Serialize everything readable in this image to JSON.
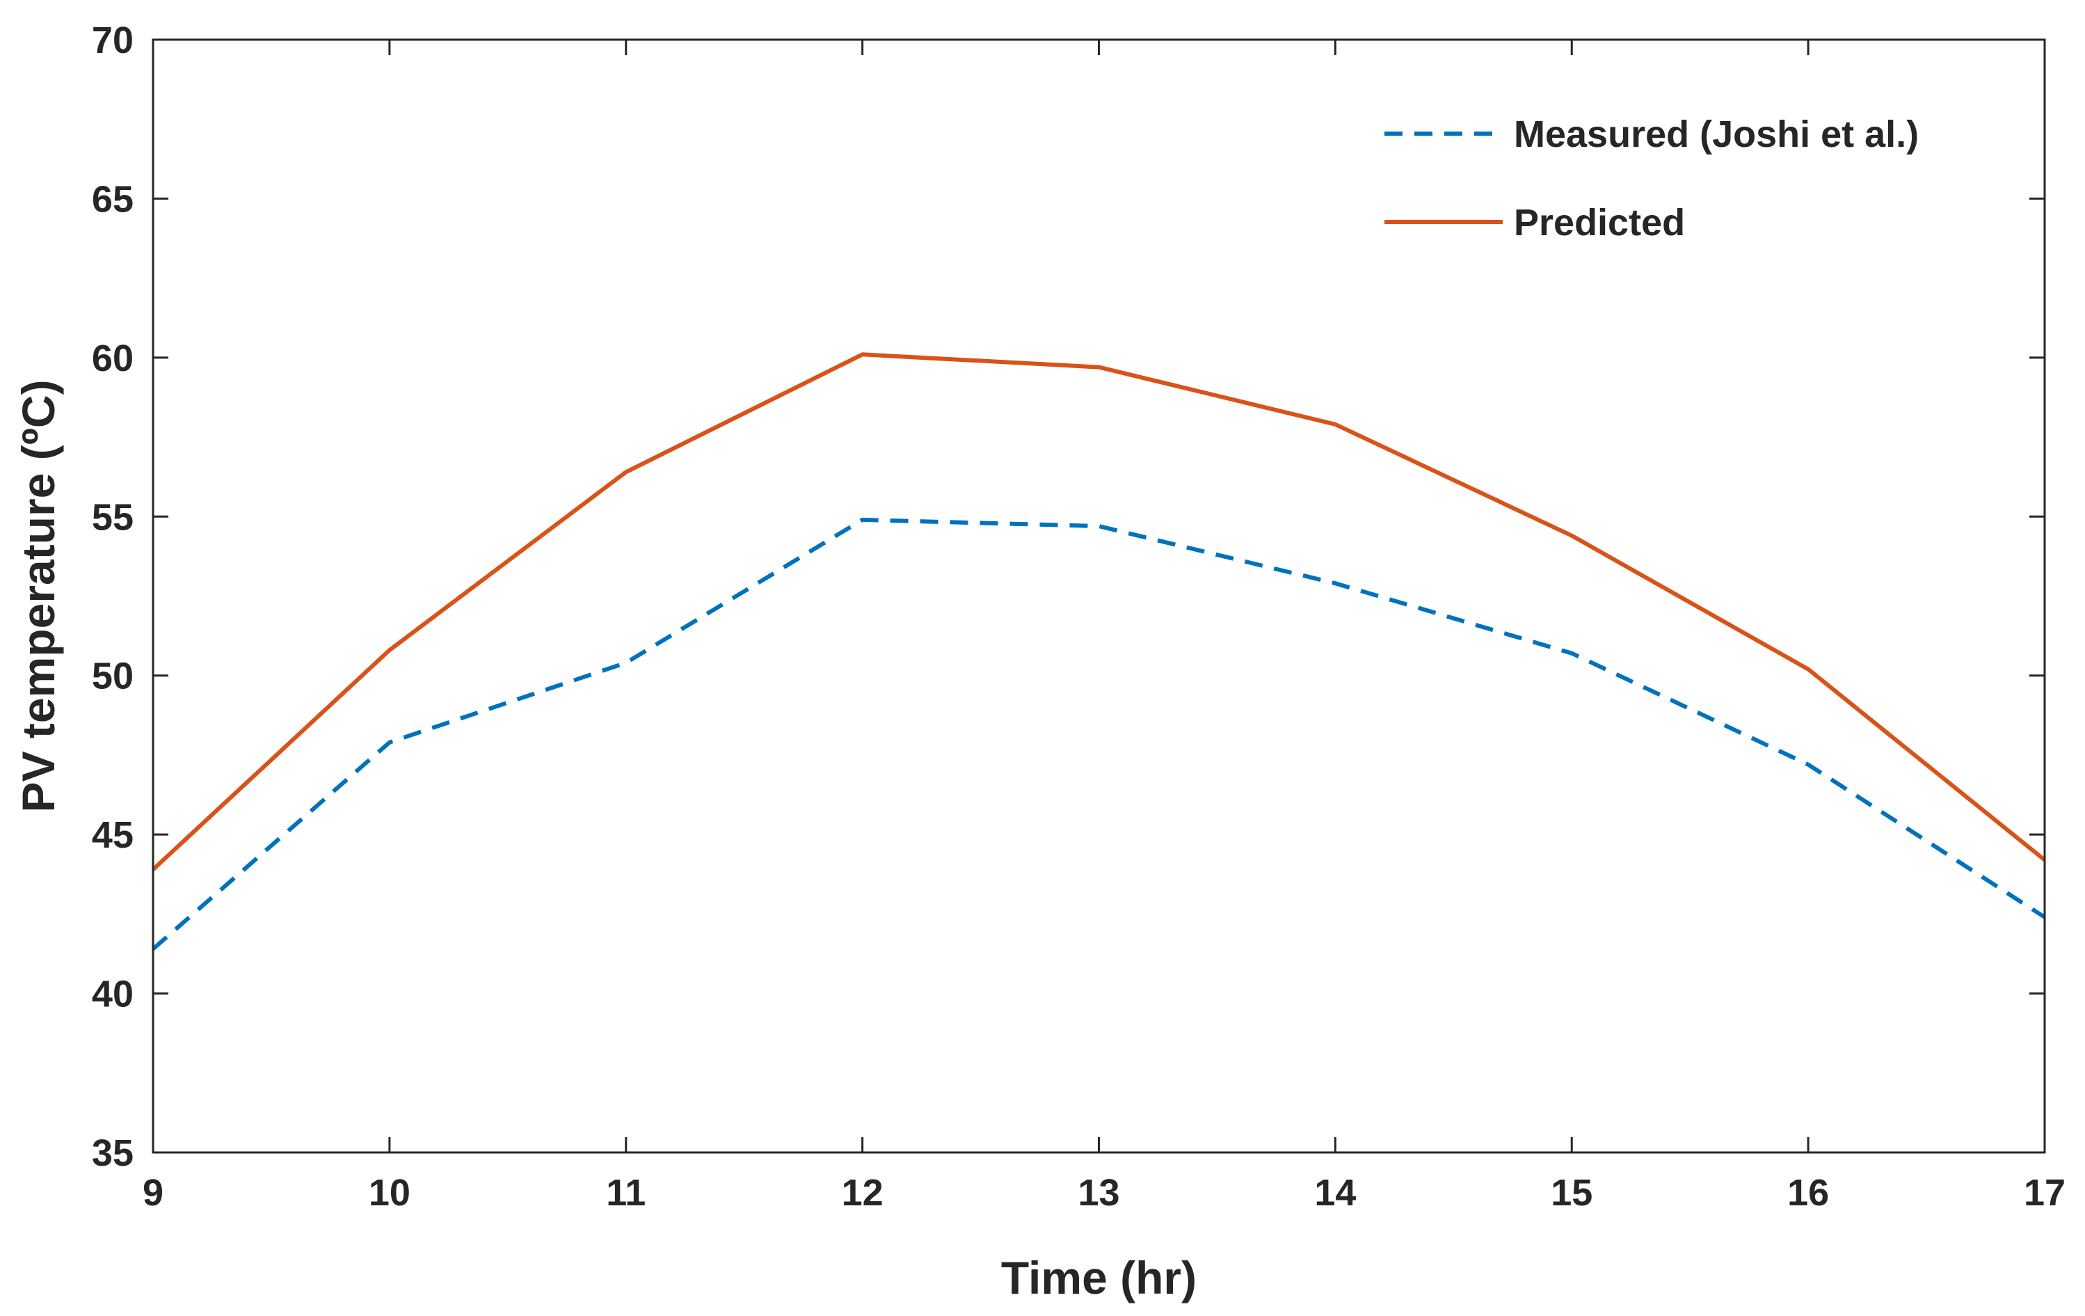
{
  "chart_data": {
    "type": "line",
    "title": "",
    "xlabel": "Time (hr)",
    "ylabel": "PV temperature (ºC)",
    "xlim": [
      9,
      17
    ],
    "ylim": [
      35,
      70
    ],
    "xticks": [
      9,
      10,
      11,
      12,
      13,
      14,
      15,
      16,
      17
    ],
    "yticks": [
      35,
      40,
      45,
      50,
      55,
      60,
      65,
      70
    ],
    "grid": false,
    "legend_position": "top-right",
    "x": [
      9,
      10,
      11,
      12,
      13,
      14,
      15,
      16,
      17
    ],
    "series": [
      {
        "name": "Measured (Joshi et al.)",
        "style": "dashed",
        "color": "#0072BD",
        "values": [
          41.4,
          47.9,
          50.4,
          54.9,
          54.7,
          52.9,
          50.7,
          47.2,
          42.4
        ]
      },
      {
        "name": "Predicted",
        "style": "solid",
        "color": "#D95319",
        "values": [
          43.9,
          50.8,
          56.4,
          60.1,
          59.7,
          57.9,
          54.4,
          50.2,
          44.2
        ]
      }
    ]
  }
}
